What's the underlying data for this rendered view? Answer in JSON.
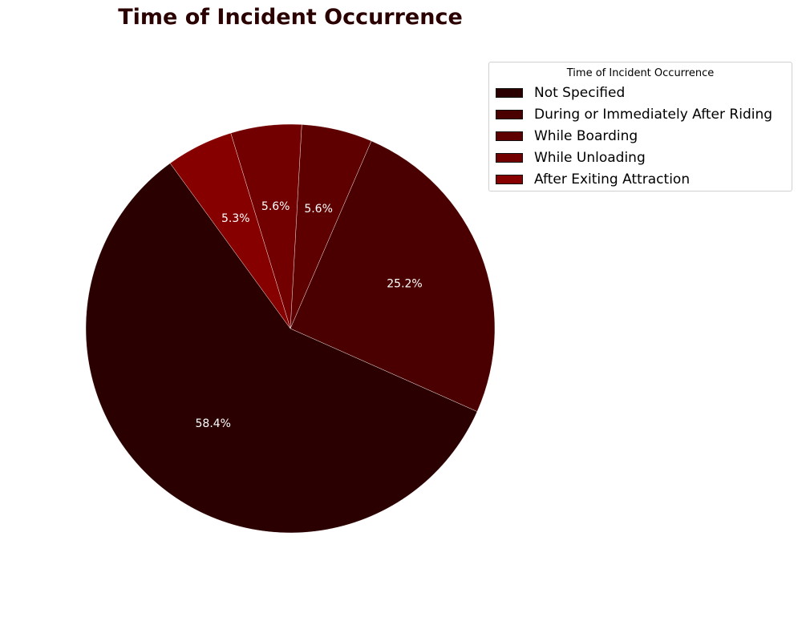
{
  "chart_data": {
    "type": "pie",
    "title": "Time of Incident Occurrence",
    "legend_title": "Time of Incident Occurrence",
    "legend_position": "top-right",
    "start_angle_deg": 126,
    "direction": "counterclockwise",
    "slices": [
      {
        "label": "Not Specified",
        "value": 58.4,
        "pct_label": "58.4%",
        "color": "#2b0000"
      },
      {
        "label": "During or Immediately After Riding",
        "value": 25.2,
        "pct_label": "25.2%",
        "color": "#4a0000"
      },
      {
        "label": "While Boarding",
        "value": 5.6,
        "pct_label": "5.6%",
        "color": "#5e0000"
      },
      {
        "label": "While Unloading",
        "value": 5.6,
        "pct_label": "5.6%",
        "color": "#720000"
      },
      {
        "label": "After Exiting Attraction",
        "value": 5.3,
        "pct_label": "5.3%",
        "color": "#870000"
      }
    ]
  }
}
